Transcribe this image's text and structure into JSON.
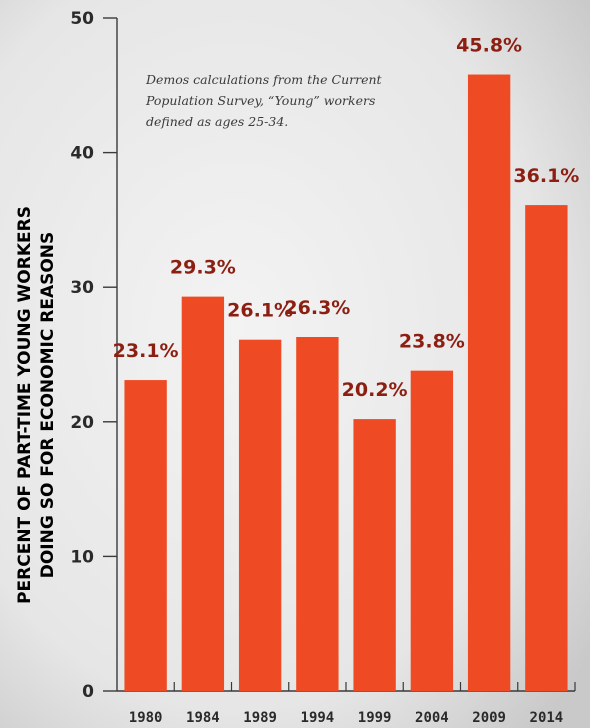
{
  "chart_data": {
    "type": "bar",
    "categories": [
      "1980",
      "1984",
      "1989",
      "1994",
      "1999",
      "2004",
      "2009",
      "2014"
    ],
    "values": [
      23.1,
      29.3,
      26.1,
      26.3,
      20.2,
      23.8,
      45.8,
      36.1
    ],
    "data_labels": [
      "23.1%",
      "29.3%",
      "26.1%",
      "26.3%",
      "20.2%",
      "23.8%",
      "45.8%",
      "36.1%"
    ],
    "ylabel_lines": [
      "PERCENT OF PART-TIME YOUNG WORKERS",
      "DOING SO FOR ECONOMIC REASONS"
    ],
    "xlabel": "",
    "ylim": [
      0,
      50
    ],
    "yticks": [
      0,
      10,
      20,
      30,
      40,
      50
    ],
    "annotation_lines": [
      "Demos calculations from the Current",
      "Population Survey, “Young” workers",
      "defined as ages 25-34."
    ],
    "grid": false,
    "legend": "none",
    "colors": {
      "bar": "#ee4b24",
      "label": "#8c1f12",
      "axis": "#3a3a3a",
      "text": "#2a2a2a"
    }
  }
}
